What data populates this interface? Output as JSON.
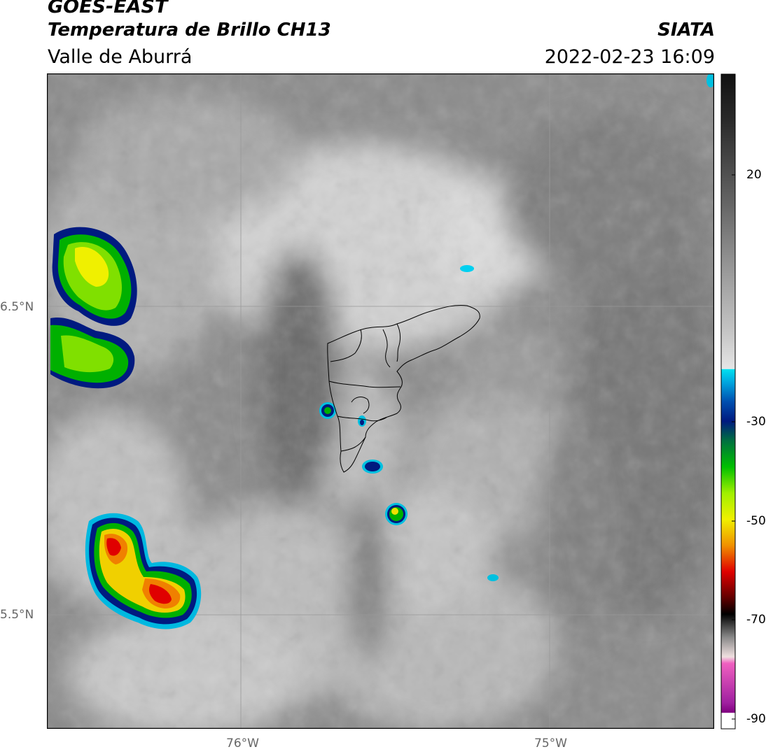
{
  "header": {
    "satellite": "GOES-EAST",
    "product": "Temperatura de Brillo CH13",
    "region": "Valle de Aburrá",
    "organization": "SIATA",
    "timestamp": "2022-02-23 16:09"
  },
  "map_axes": {
    "lat_ticks": [
      "6.5°N",
      "5.5°N"
    ],
    "lon_ticks": [
      "76°W",
      "75°W"
    ]
  },
  "colorbar": {
    "tick_labels": [
      "20",
      "-30",
      "-50",
      "-70",
      "-90"
    ],
    "colors": {
      "warm_gray_dark": "#1a1a1a",
      "light_gray": "#f0f0f0",
      "cyan": "#00e0f0",
      "blue": "#0060c0",
      "navy": "#001a80",
      "green": "#00c000",
      "lime": "#a0f000",
      "yellow": "#f0f000",
      "orange": "#f08000",
      "red": "#e00000",
      "black": "#000000",
      "pink": "#e040c0",
      "purple": "#800080"
    }
  },
  "map_colors": {
    "frame": "#000000",
    "gridline": "#999999",
    "boundary": "#000000"
  }
}
